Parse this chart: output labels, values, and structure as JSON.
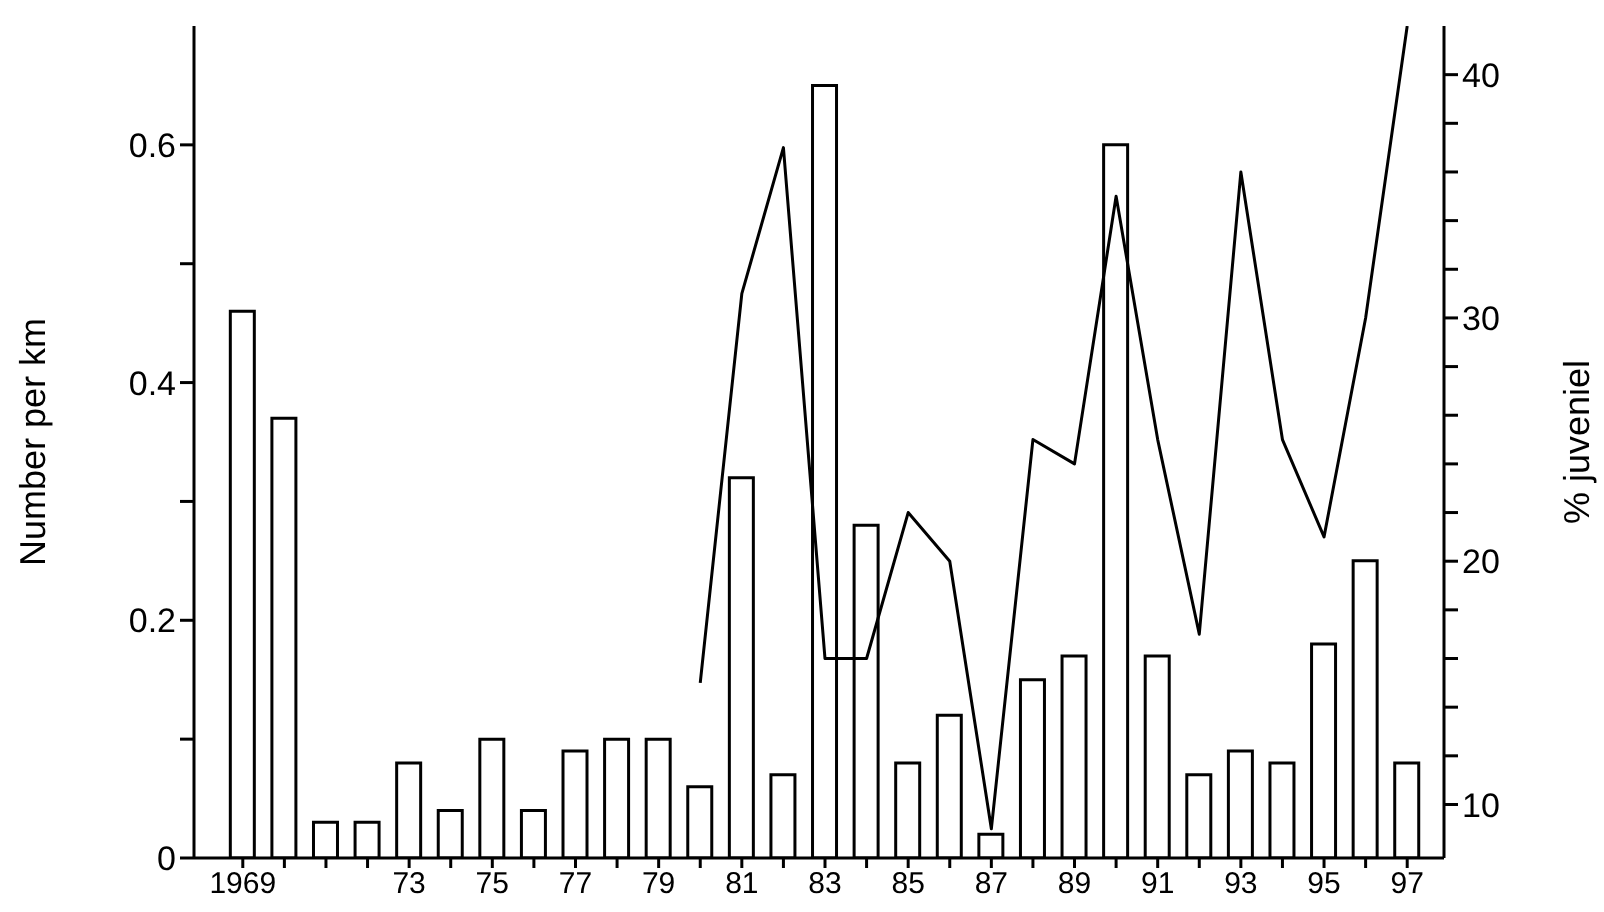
{
  "chart_data": {
    "type": "bar",
    "ylabel": "Number per km",
    "y2label": "% juveniel",
    "categories": [
      "1969",
      null,
      null,
      null,
      "73",
      null,
      "75",
      null,
      "77",
      null,
      "79",
      null,
      "81",
      null,
      "83",
      null,
      "85",
      null,
      "87",
      null,
      "89",
      null,
      "91",
      null,
      "93",
      null,
      "95",
      null,
      "97"
    ],
    "series": [
      {
        "color": "#ffffff",
        "values": [
          0.46,
          0.37,
          0.03,
          0.03,
          0.08,
          0.04,
          0.1,
          0.04,
          0.09,
          0.1,
          0.1,
          0.06,
          0.32,
          0.07,
          0.65,
          0.28,
          0.08,
          0.12,
          0.02,
          0.15,
          0.17,
          0.6,
          0.17,
          0.07,
          0.09,
          0.08,
          0.18,
          0.25,
          0.08
        ]
      },
      {
        "type": "line",
        "axis": "y2",
        "color": "#000000",
        "values": [
          null,
          null,
          null,
          null,
          null,
          null,
          null,
          null,
          null,
          null,
          null,
          15,
          31,
          37,
          16,
          16,
          22,
          20,
          9,
          25,
          24,
          35,
          25,
          17,
          36,
          25,
          21,
          30,
          42
        ]
      }
    ],
    "ylim": [
      0,
      0.7
    ],
    "yticks": [
      0,
      {
        "value": 0.1,
        "label": null
      },
      0.2,
      {
        "value": 0.3,
        "label": null
      },
      0.4,
      {
        "value": 0.5,
        "label": null
      },
      0.6
    ],
    "y2lim": [
      7.8,
      42
    ],
    "y2ticks": [
      10,
      {
        "value": 12,
        "label": null
      },
      {
        "value": 14,
        "label": null
      },
      {
        "value": 16,
        "label": null
      },
      {
        "value": 18,
        "label": null
      },
      20,
      {
        "value": 22,
        "label": null
      },
      {
        "value": 24,
        "label": null
      },
      {
        "value": 26,
        "label": null
      },
      {
        "value": 28,
        "label": null
      },
      30,
      {
        "value": 32,
        "label": null
      },
      {
        "value": 34,
        "label": null
      },
      {
        "value": 36,
        "label": null
      },
      {
        "value": 38,
        "label": null
      },
      40
    ],
    "marker": "none",
    "line_style": "solid"
  }
}
